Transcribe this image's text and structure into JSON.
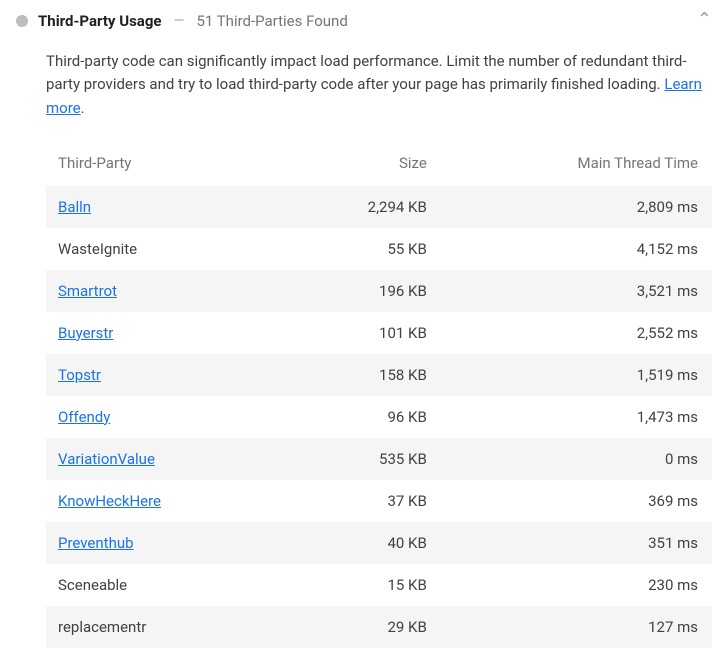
{
  "header": {
    "title": "Third-Party Usage",
    "summary": "51 Third-Parties Found"
  },
  "description": {
    "text": "Third-party code can significantly impact load performance. Limit the number of redundant third-party providers and try to load third-party code after your page has primarily finished loading. ",
    "learn_more": "Learn more"
  },
  "table": {
    "columns": [
      "Third-Party",
      "Size",
      "Main Thread Time"
    ],
    "rows": [
      {
        "name": "Balln",
        "link": true,
        "size": "2,294 KB",
        "time": "2,809 ms"
      },
      {
        "name": "WasteIgnite",
        "link": false,
        "size": "55 KB",
        "time": "4,152 ms"
      },
      {
        "name": "Smartrot",
        "link": true,
        "size": "196 KB",
        "time": "3,521 ms"
      },
      {
        "name": "Buyerstr",
        "link": true,
        "size": "101 KB",
        "time": "2,552 ms"
      },
      {
        "name": "Topstr",
        "link": true,
        "size": "158 KB",
        "time": "1,519 ms"
      },
      {
        "name": "Offendy",
        "link": true,
        "size": "96 KB",
        "time": "1,473 ms"
      },
      {
        "name": "VariationValue",
        "link": true,
        "size": "535 KB",
        "time": "0 ms"
      },
      {
        "name": "KnowHeckHere",
        "link": true,
        "size": "37 KB",
        "time": "369 ms"
      },
      {
        "name": "Preventhub",
        "link": true,
        "size": "40 KB",
        "time": "351 ms"
      },
      {
        "name": "Sceneable",
        "link": false,
        "size": "15 KB",
        "time": "230 ms"
      },
      {
        "name": "replacementr",
        "link": false,
        "size": "29 KB",
        "time": "127 ms"
      }
    ]
  },
  "colors": {
    "status_dot": "#bdbdbd",
    "link": "#1a73e8",
    "row_stripe": "#f5f5f5",
    "text_primary": "#212121",
    "text_secondary": "#757575"
  }
}
